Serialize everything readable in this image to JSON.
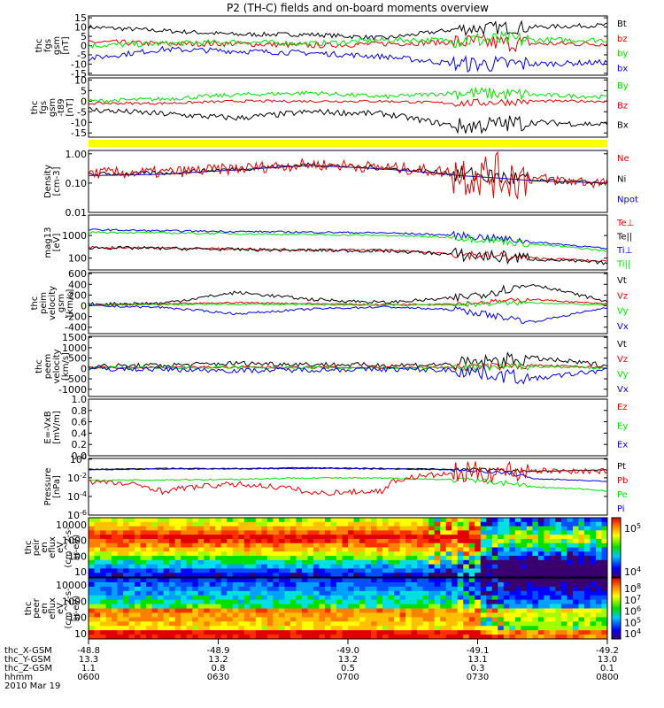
{
  "title": "P2 (TH-C) fields and on-board moments overview",
  "colors": {
    "black": "#000000",
    "red": "#e00000",
    "green": "#00e000",
    "blue": "#0000e0",
    "yellow": "#ffff00"
  },
  "panels": [
    {
      "id": "fgs-gsm",
      "ylabel": [
        "thc",
        "fgs",
        "gsm",
        "[nT]"
      ],
      "ticks": [
        "15",
        "10",
        "5",
        "0",
        "-5",
        "-10",
        "-15"
      ],
      "tickvals": [
        15,
        10,
        5,
        0,
        -5,
        -10,
        -15
      ],
      "ylim": [
        -16,
        16
      ],
      "legend": [
        {
          "text": "Bt",
          "color": "black"
        },
        {
          "text": "bz",
          "color": "red"
        },
        {
          "text": "by",
          "color": "green"
        },
        {
          "text": "bx",
          "color": "blue"
        }
      ]
    },
    {
      "id": "fgs-gsm-t89",
      "ylabel": [
        "thc",
        "fgs",
        "gsm",
        "-t89",
        "[nT]"
      ],
      "ticks": [
        "10",
        "5",
        "0",
        "-5",
        "-10",
        "-15"
      ],
      "tickvals": [
        10,
        5,
        0,
        -5,
        -10,
        -15
      ],
      "ylim": [
        -17,
        11
      ],
      "legend": [
        {
          "text": "By",
          "color": "green"
        },
        {
          "text": "Bz",
          "color": "red"
        },
        {
          "text": "Bx",
          "color": "black"
        }
      ]
    },
    {
      "id": "density",
      "ylabel": [
        "Density",
        "[cm-3]"
      ],
      "ticks": [
        "1.00",
        "0.10",
        "0.01"
      ],
      "tickvals": [
        1,
        0.1,
        0.01
      ],
      "ylim": [
        0.01,
        1.3
      ],
      "log": true,
      "legend": [
        {
          "text": "Ne",
          "color": "red"
        },
        {
          "text": "Ni",
          "color": "black"
        },
        {
          "text": "Npot",
          "color": "blue"
        }
      ]
    },
    {
      "id": "temperature",
      "ylabel": [
        "mag13",
        "[eV]"
      ],
      "ticks": [
        "1000",
        "100"
      ],
      "tickvals": [
        1000,
        100
      ],
      "ylim": [
        30,
        8000
      ],
      "log": true,
      "legend": [
        {
          "text": "Te⊥",
          "color": "red"
        },
        {
          "text": "Te||",
          "color": "black"
        },
        {
          "text": "Ti⊥",
          "color": "blue"
        },
        {
          "text": "Ti||",
          "color": "green"
        }
      ]
    },
    {
      "id": "peim-velocity",
      "ylabel": [
        "thc",
        "peim",
        "velocity",
        "gsm",
        "[km/s]"
      ],
      "ticks": [
        "600",
        "400",
        "200",
        "0",
        "-200",
        "-400"
      ],
      "tickvals": [
        600,
        400,
        200,
        0,
        -200,
        -400
      ],
      "ylim": [
        -520,
        620
      ],
      "legend": [
        {
          "text": "Vt",
          "color": "black"
        },
        {
          "text": "Vz",
          "color": "red"
        },
        {
          "text": "Vy",
          "color": "green"
        },
        {
          "text": "Vx",
          "color": "blue"
        }
      ]
    },
    {
      "id": "peem-velocity",
      "ylabel": [
        "thc",
        "peem",
        "velocity",
        "[km/s]"
      ],
      "ticks": [
        "1500",
        "1000",
        "500",
        "0",
        "-500",
        "-1000"
      ],
      "tickvals": [
        1500,
        1000,
        500,
        0,
        -500,
        -1000
      ],
      "ylim": [
        -1350,
        1550
      ],
      "legend": [
        {
          "text": "Vt",
          "color": "black"
        },
        {
          "text": "Vz",
          "color": "red"
        },
        {
          "text": "Vy",
          "color": "green"
        },
        {
          "text": "Vx",
          "color": "blue"
        }
      ]
    },
    {
      "id": "efield",
      "ylabel": [
        "E=-VxB",
        "[mV/m]"
      ],
      "ticks": [
        "1.0",
        "0.8",
        "0.6",
        "0.4",
        "0.2",
        "0.0"
      ],
      "tickvals": [
        1,
        0.8,
        0.6,
        0.4,
        0.2,
        0
      ],
      "ylim": [
        0,
        1
      ],
      "legend": [
        {
          "text": "Ez",
          "color": "red"
        },
        {
          "text": "Ey",
          "color": "green"
        },
        {
          "text": "Ex",
          "color": "blue"
        }
      ]
    },
    {
      "id": "pressure",
      "ylabel": [
        "Pressure",
        "[nPa]"
      ],
      "ticks": [
        "10^0",
        "10^-2",
        "10^-4",
        "10^-6"
      ],
      "tickvals": [
        1,
        0.01,
        0.0001,
        1e-06
      ],
      "ylim": [
        1e-06,
        1.2
      ],
      "log": true,
      "legend": [
        {
          "text": "Pt",
          "color": "black"
        },
        {
          "text": "Pb",
          "color": "red"
        },
        {
          "text": "Pe",
          "color": "green"
        },
        {
          "text": "Pi",
          "color": "blue"
        }
      ]
    }
  ],
  "spectrograms": [
    {
      "id": "peir-eflux",
      "ylabel": [
        "thc",
        "peir",
        "en",
        "eflux",
        "eV",
        "(cm^2-s-",
        "sr-eV)"
      ],
      "ticks": [
        "10000",
        "1000",
        "100",
        "10"
      ],
      "colorbar_ticks": [
        "10^5",
        "10^4"
      ]
    },
    {
      "id": "peer-eflux",
      "ylabel": [
        "thc",
        "peer",
        "en",
        "eflux",
        "eV",
        "(cm^2-s-",
        "sr-eV)"
      ],
      "ticks": [
        "10000",
        "1000",
        "100",
        "10"
      ],
      "colorbar_ticks": [
        "10^8",
        "10^7",
        "10^6",
        "10^5",
        "10^4"
      ]
    }
  ],
  "xaxis": {
    "rows": [
      {
        "label": "thc_X-GSM",
        "values": [
          "-48.8",
          "-48.9",
          "-49.0",
          "-49.1",
          "-49.2"
        ]
      },
      {
        "label": "thc_Y-GSM",
        "values": [
          "13.3",
          "13.2",
          "13.2",
          "13.1",
          "13.0"
        ]
      },
      {
        "label": "thc_Z-GSM",
        "values": [
          "1.1",
          "0.8",
          "0.5",
          "0.3",
          "0.1"
        ]
      },
      {
        "label": "hhmm",
        "values": [
          "0600",
          "0630",
          "0700",
          "0730",
          "0800"
        ]
      }
    ],
    "date": "2010 Mar 19"
  },
  "chart_data": {
    "type": "line",
    "title": "P2 (TH-C) fields and on-board moments overview",
    "x": [
      "0600",
      "0630",
      "0700",
      "0730",
      "0800"
    ],
    "xlabel": "hhmm",
    "series": [
      {
        "panel": "fgs-gsm",
        "name": "Bt",
        "values": [
          10,
          7,
          6,
          5,
          10
        ]
      },
      {
        "panel": "fgs-gsm",
        "name": "bz",
        "values": [
          2,
          1,
          0,
          1,
          2
        ]
      },
      {
        "panel": "fgs-gsm",
        "name": "by",
        "values": [
          1,
          2,
          1,
          3,
          3
        ]
      },
      {
        "panel": "fgs-gsm",
        "name": "bx",
        "values": [
          -9,
          -5,
          -3,
          -5,
          -8
        ]
      },
      {
        "panel": "fgs-gsm-t89",
        "name": "By",
        "values": [
          1,
          3,
          2,
          4,
          2
        ]
      },
      {
        "panel": "fgs-gsm-t89",
        "name": "Bz",
        "values": [
          -1,
          0,
          0,
          0,
          0
        ]
      },
      {
        "panel": "fgs-gsm-t89",
        "name": "Bx",
        "values": [
          -10,
          -6,
          -4,
          -8,
          -10
        ]
      },
      {
        "panel": "density",
        "name": "Ni",
        "values": [
          0.2,
          0.25,
          0.4,
          0.2,
          0.1
        ]
      },
      {
        "panel": "density",
        "name": "Ne",
        "values": [
          0.22,
          0.27,
          0.42,
          0.25,
          0.12
        ]
      },
      {
        "panel": "temperature",
        "name": "Ti⊥",
        "values": [
          1800,
          1400,
          1300,
          900,
          280
        ]
      },
      {
        "panel": "temperature",
        "name": "Te||",
        "values": [
          300,
          260,
          250,
          150,
          70
        ]
      },
      {
        "panel": "peim-velocity",
        "name": "Vt",
        "values": [
          30,
          250,
          50,
          400,
          80
        ]
      },
      {
        "panel": "peem-velocity",
        "name": "Vt",
        "values": [
          100,
          200,
          150,
          700,
          150
        ]
      },
      {
        "panel": "pressure",
        "name": "Pt",
        "values": [
          0.1,
          0.1,
          0.1,
          0.06,
          0.08
        ]
      },
      {
        "panel": "pressure",
        "name": "Pe",
        "values": [
          0.005,
          0.007,
          0.01,
          0.003,
          0.0001
        ]
      }
    ]
  }
}
